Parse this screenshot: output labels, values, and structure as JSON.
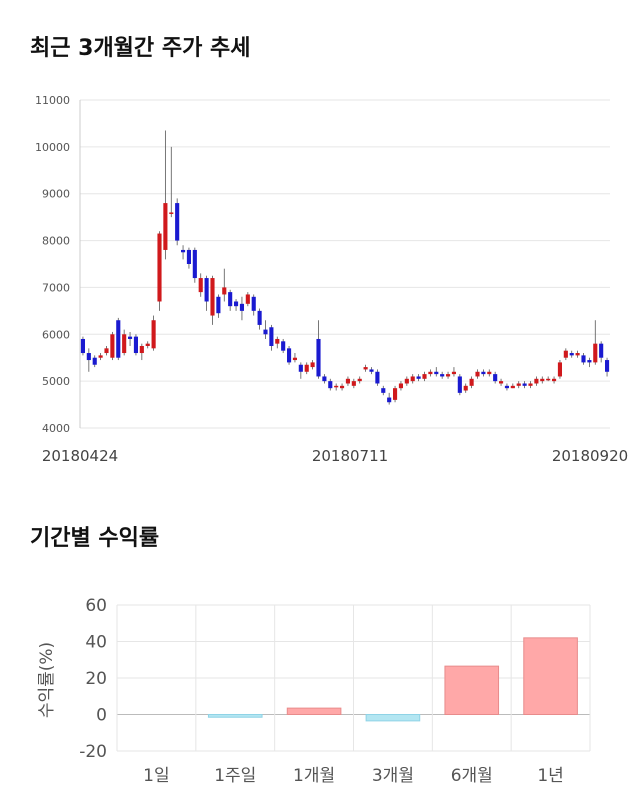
{
  "sections": {
    "price_title": "최근 3개월간 주가 추세",
    "returns_title": "기간별 수익률"
  },
  "colors": {
    "up": "#d0191c",
    "down": "#1a1ad0",
    "bar_positive_fill": "#ffa8a8",
    "bar_positive_stroke": "#e88b8b",
    "bar_negative_fill": "#b3e6f2",
    "bar_negative_stroke": "#8fd3e6",
    "grid": "#e6e6e6"
  },
  "chart_data": [
    {
      "type": "candlestick",
      "title": "최근 3개월간 주가 추세",
      "ylim": [
        4000,
        11000
      ],
      "yticks": [
        4000,
        5000,
        6000,
        7000,
        8000,
        9000,
        10000,
        11000
      ],
      "xtick_labels": [
        "20180424",
        "20180711",
        "20180920"
      ],
      "candles": [
        [
          5900,
          5600,
          5950,
          5550
        ],
        [
          5600,
          5450,
          5700,
          5200
        ],
        [
          5500,
          5350,
          5550,
          5300
        ],
        [
          5500,
          5550,
          5600,
          5450
        ],
        [
          5600,
          5700,
          5750,
          5550
        ],
        [
          5500,
          6000,
          6050,
          5450
        ],
        [
          6300,
          5500,
          6350,
          5450
        ],
        [
          5600,
          6000,
          6100,
          5550
        ],
        [
          5950,
          5900,
          6050,
          5750
        ],
        [
          5950,
          5600,
          6000,
          5550
        ],
        [
          5600,
          5750,
          5800,
          5450
        ],
        [
          5750,
          5800,
          5850,
          5700
        ],
        [
          5700,
          6300,
          6400,
          5650
        ],
        [
          6700,
          8150,
          8200,
          6500
        ],
        [
          7800,
          8800,
          10350,
          7600
        ],
        [
          8600,
          8600,
          10000,
          8500
        ],
        [
          8800,
          8000,
          8900,
          7900
        ],
        [
          7800,
          7750,
          7900,
          7600
        ],
        [
          7800,
          7500,
          7850,
          7400
        ],
        [
          7800,
          7200,
          7850,
          7100
        ],
        [
          6900,
          7200,
          7300,
          6800
        ],
        [
          7200,
          6700,
          7250,
          6500
        ],
        [
          6400,
          7200,
          7250,
          6200
        ],
        [
          6800,
          6450,
          6850,
          6350
        ],
        [
          6850,
          7000,
          7400,
          6700
        ],
        [
          6900,
          6600,
          6950,
          6500
        ],
        [
          6700,
          6600,
          6750,
          6500
        ],
        [
          6650,
          6500,
          6800,
          6300
        ],
        [
          6650,
          6850,
          6900,
          6600
        ],
        [
          6800,
          6500,
          6850,
          6400
        ],
        [
          6500,
          6200,
          6550,
          6100
        ],
        [
          6100,
          6000,
          6300,
          5900
        ],
        [
          6150,
          5750,
          6200,
          5650
        ],
        [
          5800,
          5900,
          5950,
          5700
        ],
        [
          5850,
          5650,
          5900,
          5600
        ],
        [
          5700,
          5400,
          5750,
          5350
        ],
        [
          5450,
          5500,
          5600,
          5400
        ],
        [
          5350,
          5200,
          5400,
          5050
        ],
        [
          5200,
          5350,
          5400,
          5150
        ],
        [
          5300,
          5400,
          5450,
          5250
        ],
        [
          5900,
          5100,
          6300,
          5050
        ],
        [
          5100,
          5000,
          5150,
          4950
        ],
        [
          5000,
          4850,
          5050,
          4800
        ],
        [
          4900,
          4900,
          4950,
          4800
        ],
        [
          4850,
          4900,
          4950,
          4800
        ],
        [
          4950,
          5050,
          5100,
          4900
        ],
        [
          4900,
          5000,
          5050,
          4850
        ],
        [
          5000,
          5050,
          5100,
          4950
        ],
        [
          5250,
          5300,
          5350,
          5200
        ],
        [
          5250,
          5200,
          5300,
          5150
        ],
        [
          5200,
          4950,
          5250,
          4900
        ],
        [
          4850,
          4750,
          4900,
          4700
        ],
        [
          4650,
          4550,
          4750,
          4500
        ],
        [
          4600,
          4850,
          4900,
          4550
        ],
        [
          4850,
          4950,
          5000,
          4800
        ],
        [
          4950,
          5050,
          5100,
          4900
        ],
        [
          5000,
          5100,
          5150,
          4950
        ],
        [
          5100,
          5050,
          5150,
          5000
        ],
        [
          5050,
          5150,
          5200,
          5000
        ],
        [
          5150,
          5200,
          5250,
          5100
        ],
        [
          5200,
          5150,
          5300,
          5100
        ],
        [
          5150,
          5100,
          5200,
          5050
        ],
        [
          5100,
          5150,
          5200,
          5050
        ],
        [
          5150,
          5200,
          5300,
          5100
        ],
        [
          5100,
          4750,
          5150,
          4700
        ],
        [
          4800,
          4900,
          4950,
          4750
        ],
        [
          4900,
          5050,
          5100,
          4850
        ],
        [
          5100,
          5200,
          5250,
          5050
        ],
        [
          5200,
          5150,
          5250,
          5100
        ],
        [
          5150,
          5200,
          5250,
          5100
        ],
        [
          5150,
          5000,
          5200,
          4950
        ],
        [
          4950,
          5000,
          5050,
          4900
        ],
        [
          4900,
          4850,
          4950,
          4800
        ],
        [
          4850,
          4900,
          4950,
          4850
        ],
        [
          4900,
          4950,
          5000,
          4850
        ],
        [
          4950,
          4900,
          5000,
          4850
        ],
        [
          4900,
          4950,
          5000,
          4850
        ],
        [
          4950,
          5050,
          5100,
          4900
        ],
        [
          5000,
          5050,
          5100,
          4950
        ],
        [
          5050,
          5050,
          5100,
          5000
        ],
        [
          5000,
          5050,
          5100,
          4950
        ],
        [
          5100,
          5400,
          5450,
          5050
        ],
        [
          5500,
          5650,
          5700,
          5450
        ],
        [
          5600,
          5550,
          5650,
          5500
        ],
        [
          5550,
          5600,
          5650,
          5500
        ],
        [
          5550,
          5400,
          5600,
          5350
        ],
        [
          5450,
          5400,
          5500,
          5300
        ],
        [
          5400,
          5800,
          6300,
          5350
        ],
        [
          5800,
          5500,
          5850,
          5400
        ],
        [
          5450,
          5200,
          5500,
          5100
        ]
      ]
    },
    {
      "type": "bar",
      "title": "기간별 수익률",
      "categories": [
        "1일",
        "1주일",
        "1개월",
        "3개월",
        "6개월",
        "1년"
      ],
      "values": [
        0,
        -1.5,
        3.5,
        -3.5,
        26.5,
        42
      ],
      "ylabel": "수익률(%)",
      "ylim": [
        -20,
        60
      ],
      "yticks": [
        -20,
        0,
        20,
        40,
        60
      ]
    }
  ]
}
